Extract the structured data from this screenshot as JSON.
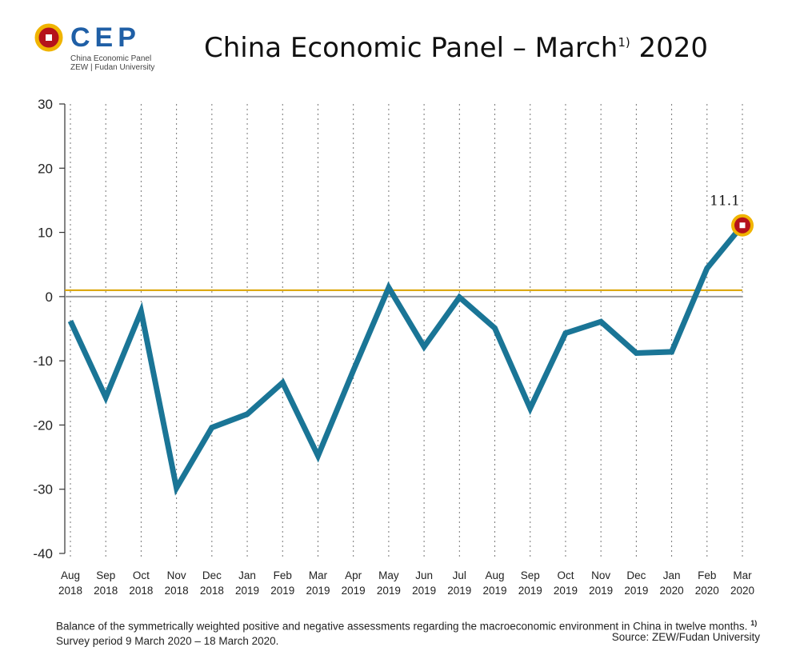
{
  "logo": {
    "text": "CEP",
    "subtitle_line1": "China Economic Panel",
    "subtitle_line2": "ZEW | Fudan University"
  },
  "header": {
    "title_main": "China Economic Panel – March",
    "title_sup": "1)",
    "title_year": "2020"
  },
  "colors": {
    "line": "#1a7596",
    "reference_line": "#d9a200",
    "zero_line": "#999999",
    "marker_ring": "#f0b400",
    "marker_fill": "#b5121b"
  },
  "chart_data": {
    "type": "line",
    "categories": [
      [
        "Aug",
        "2018"
      ],
      [
        "Sep",
        "2018"
      ],
      [
        "Oct",
        "2018"
      ],
      [
        "Nov",
        "2018"
      ],
      [
        "Dec",
        "2018"
      ],
      [
        "Jan",
        "2019"
      ],
      [
        "Feb",
        "2019"
      ],
      [
        "Mar",
        "2019"
      ],
      [
        "Apr",
        "2019"
      ],
      [
        "May",
        "2019"
      ],
      [
        "Jun",
        "2019"
      ],
      [
        "Jul",
        "2019"
      ],
      [
        "Aug",
        "2019"
      ],
      [
        "Sep",
        "2019"
      ],
      [
        "Oct",
        "2019"
      ],
      [
        "Nov",
        "2019"
      ],
      [
        "Dec",
        "2019"
      ],
      [
        "Jan",
        "2020"
      ],
      [
        "Feb",
        "2020"
      ],
      [
        "Mar",
        "2020"
      ]
    ],
    "series": [
      {
        "values": [
          -3.8,
          -15.7,
          -2.3,
          -29.8,
          -20.4,
          -18.3,
          -13.4,
          -24.8,
          -11.5,
          1.4,
          -7.8,
          -0.1,
          -4.9,
          -17.4,
          -5.7,
          -3.9,
          -8.8,
          -8.6,
          4.4,
          11.1
        ]
      }
    ],
    "ylim": [
      -40,
      30
    ],
    "yticks": [
      30,
      20,
      10,
      0,
      -10,
      -20,
      -30,
      -40
    ],
    "reference_line_value": 1.0,
    "grid": "vertical-dotted",
    "annotation": {
      "text": "11.1",
      "category_index": 19
    }
  },
  "caption": {
    "text": "Balance of the symmetrically weighted positive and negative assessments regarding the macroeconomic environment in China in twelve months.",
    "footnote_mark": "1)",
    "footnote": "Survey period 9 March 2020 – 18 March 2020.",
    "source": "Source: ZEW/Fudan University"
  }
}
